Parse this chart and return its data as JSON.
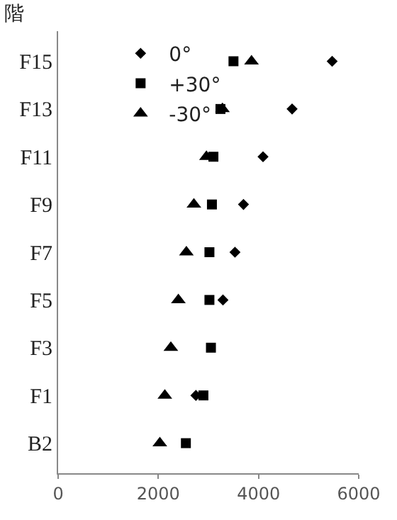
{
  "chart_data": {
    "type": "scatter",
    "orientation": "horizontal",
    "ylabel": "階",
    "categories": [
      "F15",
      "F13",
      "F11",
      "F9",
      "F7",
      "F5",
      "F3",
      "F1",
      "B2"
    ],
    "xlim": [
      0,
      6000
    ],
    "xticks": [
      0,
      2000,
      4000,
      6000
    ],
    "grid": false,
    "legend": "top left",
    "series": [
      {
        "name": "0°",
        "color": "#000000",
        "marker": "diamond",
        "values": [
          5470,
          4670,
          4090,
          3700,
          3530,
          3290,
          null,
          2750,
          null
        ]
      },
      {
        "name": "+30°",
        "color": "#000000",
        "marker": "square",
        "values": [
          3500,
          3240,
          3100,
          3070,
          3020,
          3020,
          3050,
          2900,
          2550
        ]
      },
      {
        "name": "-30°",
        "color": "#000000",
        "marker": "triangle",
        "values": [
          3860,
          3280,
          2960,
          2710,
          2560,
          2400,
          2250,
          2130,
          2030
        ]
      }
    ]
  }
}
